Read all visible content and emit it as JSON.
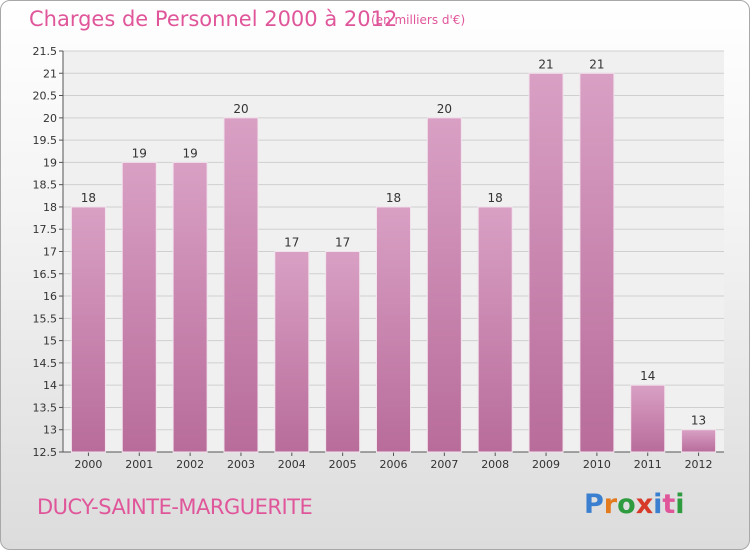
{
  "header": {
    "title": "Charges de Personnel 2000 à 2012",
    "subtitle": "(en milliers d'€)"
  },
  "footer": {
    "commune": "DUCY-SAINTE-MARGUERITE",
    "brand_letters": [
      "P",
      "r",
      "o",
      "x",
      "i",
      "t",
      "i"
    ],
    "brand_colors": [
      "#3a7fd0",
      "#e37a1d",
      "#2e9b3f",
      "#d83a2a",
      "#3a7fd0",
      "#e0569a",
      "#2e9b3f"
    ]
  },
  "chart_data": {
    "type": "bar",
    "categories": [
      "2000",
      "2001",
      "2002",
      "2003",
      "2004",
      "2005",
      "2006",
      "2007",
      "2008",
      "2009",
      "2010",
      "2011",
      "2012"
    ],
    "values": [
      18,
      19,
      19,
      20,
      17,
      17,
      18,
      20,
      18,
      21,
      21,
      14,
      13
    ],
    "data_labels": [
      "18",
      "19",
      "19",
      "20",
      "17",
      "17",
      "18",
      "20",
      "18",
      "21",
      "21",
      "14",
      "13"
    ],
    "yticks": [
      "12.5",
      "13",
      "13.5",
      "14",
      "14.5",
      "15",
      "15.5",
      "16",
      "16.5",
      "17",
      "17.5",
      "18",
      "18.5",
      "19",
      "19.5",
      "20",
      "20.5",
      "21",
      "21.5"
    ],
    "ylim": [
      12.5,
      21.5
    ],
    "grid": true,
    "bar_color": "#d9a0c4",
    "bar_color_dark": "#b86c9a"
  }
}
